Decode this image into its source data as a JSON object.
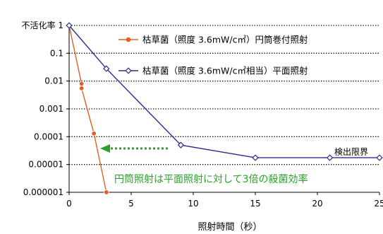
{
  "chart_data": {
    "type": "line",
    "ylog": true,
    "xlim": [
      0,
      25
    ],
    "ylim": [
      1e-06,
      1
    ],
    "x_ticks": [
      0,
      5,
      10,
      15,
      20,
      25
    ],
    "y_ticks": [
      {
        "value": 1,
        "label": "不活化率 1"
      },
      {
        "value": 0.1,
        "label": "0.1"
      },
      {
        "value": 0.01,
        "label": "0.01"
      },
      {
        "value": 0.001,
        "label": "0.001"
      },
      {
        "value": 0.0001,
        "label": "0.0001"
      },
      {
        "value": 1e-05,
        "label": "0.00001"
      },
      {
        "value": 1e-06,
        "label": "0.000001"
      }
    ],
    "xlabel": "照射時間（秒）",
    "grid_y": true,
    "grid_style": "dotted",
    "legend_position": "top",
    "series": [
      {
        "name": "枯草菌（照度 3.6mW/c㎡）円筒巻付照射",
        "color": "#e06020",
        "marker": "circle",
        "x": [
          0,
          1,
          1,
          2,
          3
        ],
        "y": [
          1,
          0.008,
          0.0055,
          0.00013,
          1e-06
        ]
      },
      {
        "name": "枯草菌（照度 3.6mW/c㎡相当）平面照射",
        "color": "#2b2b8c",
        "marker": "diamond",
        "x": [
          0,
          3,
          9,
          15,
          21,
          25
        ],
        "y": [
          1,
          0.028,
          5e-05,
          1.75e-05,
          1.75e-05,
          1.75e-05
        ]
      }
    ],
    "annotations": {
      "detection_limit": "検出限界",
      "note": "円筒照射は平面照射に対して3倍の殺菌効率"
    },
    "arrow_color": "#2aa02a"
  }
}
